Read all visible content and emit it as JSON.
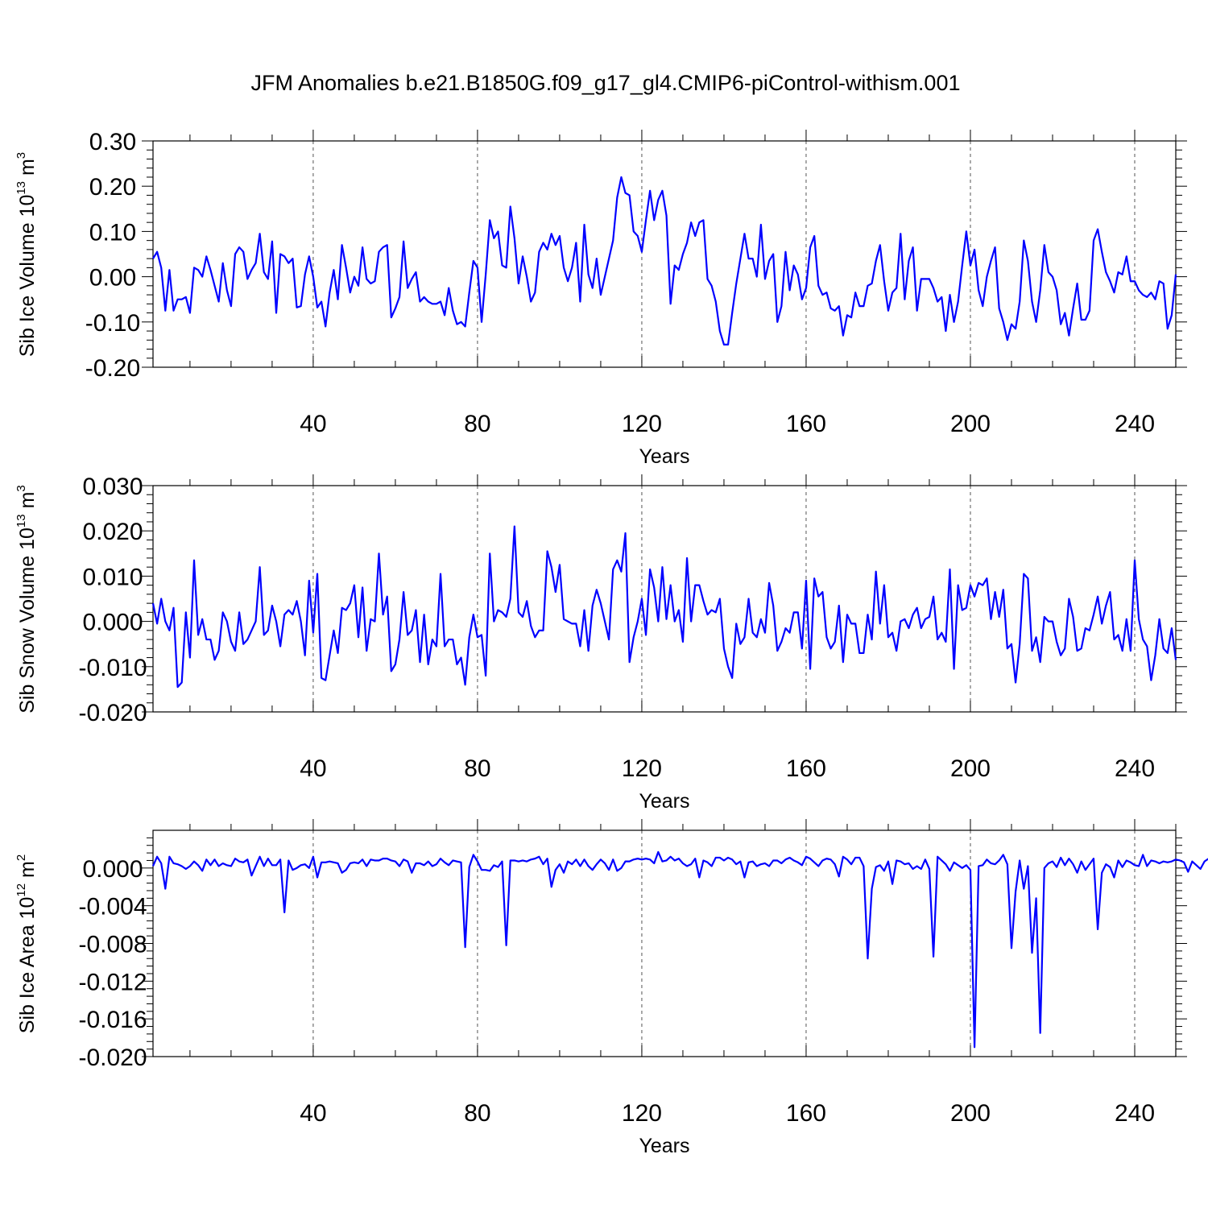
{
  "figure": {
    "title": "JFM Anomalies b.e21.B1850G.f09_g17_gl4.CMIP6-piControl-withism.001",
    "line_color": "#0000ff"
  },
  "chart_data": [
    {
      "type": "line",
      "ylabel_main": "Sib Ice Volume 10",
      "ylabel_exp": "13",
      "ylabel_unit": " m",
      "ylabel_unit_exp": "3",
      "xlabel": "Years",
      "xlim": [
        1,
        250
      ],
      "ylim": [
        -0.2,
        0.3
      ],
      "x_ticks": [
        40,
        80,
        120,
        160,
        200,
        240
      ],
      "x_tick_labels": [
        "40",
        "80",
        "120",
        "160",
        "200",
        "240"
      ],
      "y_ticks": [
        -0.2,
        -0.1,
        0.0,
        0.1,
        0.2,
        0.3
      ],
      "y_tick_labels": [
        "-0.20",
        "-0.10",
        "0.00",
        "0.10",
        "0.20",
        "0.30"
      ],
      "grid": "vertical dashed at x ticks",
      "x_start": 1,
      "values": [
        0.04,
        0.055,
        0.02,
        -0.075,
        0.015,
        -0.075,
        -0.05,
        -0.05,
        -0.045,
        -0.08,
        0.02,
        0.015,
        0.0,
        0.045,
        0.015,
        -0.02,
        -0.055,
        0.03,
        -0.03,
        -0.065,
        0.05,
        0.065,
        0.055,
        -0.005,
        0.015,
        0.03,
        0.095,
        0.01,
        -0.005,
        0.078,
        -0.08,
        0.05,
        0.045,
        0.03,
        0.04,
        -0.068,
        -0.065,
        0.005,
        0.045,
        0.0,
        -0.068,
        -0.055,
        -0.11,
        -0.035,
        0.015,
        -0.05,
        0.07,
        0.02,
        -0.035,
        0.0,
        -0.02,
        0.065,
        -0.005,
        -0.015,
        -0.01,
        0.055,
        0.065,
        0.07,
        -0.09,
        -0.07,
        -0.045,
        0.078,
        -0.025,
        -0.005,
        0.01,
        -0.055,
        -0.045,
        -0.055,
        -0.06,
        -0.06,
        -0.055,
        -0.085,
        -0.025,
        -0.075,
        -0.105,
        -0.1,
        -0.11,
        -0.035,
        0.035,
        0.02,
        -0.1,
        0.005,
        0.125,
        0.085,
        0.1,
        0.025,
        0.02,
        0.155,
        0.085,
        -0.015,
        0.045,
        0.0,
        -0.055,
        -0.035,
        0.055,
        0.075,
        0.06,
        0.095,
        0.07,
        0.09,
        0.02,
        -0.01,
        0.02,
        0.075,
        -0.055,
        0.115,
        0.005,
        -0.025,
        0.04,
        -0.04,
        0.0,
        0.04,
        0.08,
        0.175,
        0.22,
        0.185,
        0.18,
        0.1,
        0.09,
        0.055,
        0.125,
        0.19,
        0.125,
        0.17,
        0.19,
        0.135,
        -0.06,
        0.025,
        0.015,
        0.05,
        0.075,
        0.12,
        0.09,
        0.12,
        0.125,
        -0.005,
        -0.02,
        -0.055,
        -0.12,
        -0.15,
        -0.15,
        -0.08,
        -0.015,
        0.04,
        0.095,
        0.04,
        0.04,
        0.0,
        0.115,
        -0.005,
        0.035,
        0.05,
        -0.1,
        -0.065,
        0.055,
        -0.03,
        0.025,
        0.005,
        -0.05,
        -0.025,
        0.065,
        0.09,
        -0.02,
        -0.04,
        -0.035,
        -0.07,
        -0.075,
        -0.065,
        -0.13,
        -0.085,
        -0.09,
        -0.035,
        -0.065,
        -0.065,
        -0.02,
        -0.015,
        0.035,
        0.07,
        -0.01,
        -0.075,
        -0.035,
        -0.025,
        0.095,
        -0.05,
        0.035,
        0.065,
        -0.075,
        -0.005,
        -0.005,
        -0.005,
        -0.025,
        -0.055,
        -0.045,
        -0.12,
        -0.04,
        -0.1,
        -0.055,
        0.025,
        0.1,
        0.025,
        0.06,
        -0.03,
        -0.065,
        0.0,
        0.035,
        0.065,
        -0.07,
        -0.1,
        -0.14,
        -0.105,
        -0.115,
        -0.055,
        0.08,
        0.035,
        -0.055,
        -0.1,
        -0.03,
        0.07,
        0.01,
        0.0,
        -0.03,
        -0.105,
        -0.08,
        -0.13,
        -0.07,
        -0.015,
        -0.095,
        -0.095,
        -0.075,
        0.08,
        0.105,
        0.055,
        0.01,
        -0.01,
        -0.035,
        0.01,
        0.005,
        0.045,
        -0.01,
        -0.01,
        -0.03,
        -0.04,
        -0.045,
        -0.035,
        -0.05,
        -0.01,
        -0.015,
        -0.115,
        -0.085,
        0.005
      ]
    },
    {
      "type": "line",
      "ylabel_main": "Sib Snow Volume 10",
      "ylabel_exp": "13",
      "ylabel_unit": " m",
      "ylabel_unit_exp": "3",
      "xlabel": "Years",
      "xlim": [
        1,
        250
      ],
      "ylim": [
        -0.02,
        0.03
      ],
      "x_ticks": [
        40,
        80,
        120,
        160,
        200,
        240
      ],
      "x_tick_labels": [
        "40",
        "80",
        "120",
        "160",
        "200",
        "240"
      ],
      "y_ticks": [
        -0.02,
        -0.01,
        0.0,
        0.01,
        0.02,
        0.03
      ],
      "y_tick_labels": [
        "-0.020",
        "-0.010",
        "0.000",
        "0.010",
        "0.020",
        "0.030"
      ],
      "grid": "vertical dashed at x ticks",
      "x_start": 1,
      "values": [
        0.004,
        -0.0005,
        0.005,
        0.0,
        -0.002,
        0.003,
        -0.0145,
        -0.0135,
        0.002,
        -0.008,
        0.0135,
        -0.003,
        0.0005,
        -0.004,
        -0.004,
        -0.0085,
        -0.0065,
        0.002,
        0.0,
        -0.0045,
        -0.0065,
        0.002,
        -0.005,
        -0.004,
        -0.002,
        0.0,
        0.012,
        -0.003,
        -0.002,
        0.0035,
        0.0,
        -0.0055,
        0.0015,
        0.0025,
        0.0015,
        0.0045,
        0.0,
        -0.0075,
        0.009,
        -0.0025,
        0.0105,
        -0.0125,
        -0.013,
        -0.0075,
        -0.002,
        -0.007,
        0.003,
        0.0025,
        0.004,
        0.008,
        -0.0035,
        0.0075,
        -0.0065,
        0.0005,
        0.0,
        0.015,
        0.0015,
        0.0055,
        -0.011,
        -0.0095,
        -0.004,
        0.0065,
        -0.003,
        -0.002,
        0.0025,
        -0.009,
        0.0015,
        -0.0095,
        -0.004,
        -0.0055,
        0.0105,
        -0.0055,
        -0.004,
        -0.004,
        -0.0095,
        -0.008,
        -0.014,
        -0.0035,
        0.0015,
        -0.0035,
        -0.003,
        -0.012,
        0.015,
        0.0,
        0.0025,
        0.002,
        0.001,
        0.005,
        0.021,
        0.002,
        0.001,
        0.0045,
        -0.001,
        -0.0035,
        -0.002,
        -0.002,
        0.0155,
        0.012,
        0.0065,
        0.0125,
        0.0005,
        0.0,
        -0.0005,
        -0.0005,
        -0.0055,
        0.0025,
        -0.0065,
        0.0035,
        0.007,
        0.004,
        0.0,
        -0.004,
        0.0115,
        0.0135,
        0.011,
        0.0195,
        -0.009,
        -0.0035,
        0.0,
        0.005,
        -0.003,
        0.0115,
        0.0075,
        0.0,
        0.012,
        0.0005,
        0.008,
        0.0,
        0.0025,
        -0.0045,
        0.014,
        0.0,
        0.008,
        0.008,
        0.0045,
        0.0015,
        0.0025,
        0.002,
        0.005,
        -0.006,
        -0.01,
        -0.0125,
        -0.0005,
        -0.005,
        -0.0035,
        0.005,
        -0.0025,
        -0.0035,
        0.0005,
        -0.0025,
        0.0085,
        0.0035,
        -0.0065,
        -0.0045,
        -0.0015,
        -0.0025,
        0.002,
        0.002,
        -0.006,
        0.009,
        -0.0105,
        0.0095,
        0.0055,
        0.0065,
        -0.0035,
        -0.006,
        -0.0045,
        0.0035,
        -0.009,
        0.0015,
        -0.0005,
        -0.0005,
        -0.007,
        -0.007,
        0.0015,
        -0.004,
        0.011,
        -0.0005,
        0.008,
        -0.0035,
        -0.0025,
        -0.0065,
        0.0,
        0.0005,
        -0.0015,
        0.0015,
        0.003,
        -0.0015,
        0.0005,
        0.001,
        0.0055,
        -0.004,
        -0.0025,
        -0.0045,
        0.0115,
        -0.0105,
        0.008,
        0.0025,
        0.003,
        0.008,
        0.0055,
        0.0085,
        0.008,
        0.0095,
        0.0005,
        0.0065,
        0.001,
        0.007,
        -0.006,
        -0.005,
        -0.0135,
        -0.005,
        0.0105,
        0.0095,
        -0.0065,
        -0.0035,
        -0.009,
        0.001,
        0.0,
        0.0,
        -0.0045,
        -0.0075,
        -0.006,
        0.005,
        0.001,
        -0.0065,
        -0.006,
        -0.0015,
        -0.002,
        0.0015,
        0.0055,
        -0.0005,
        0.0035,
        0.0065,
        -0.004,
        -0.003,
        -0.0065,
        0.0005,
        -0.0065,
        0.0135,
        0.0005,
        -0.004,
        -0.0055,
        -0.013,
        -0.0075,
        0.0005,
        -0.006,
        -0.007,
        -0.0015,
        -0.0085
      ]
    },
    {
      "type": "line",
      "ylabel_main": "Sib Ice Area 10",
      "ylabel_exp": "12",
      "ylabel_unit": " m",
      "ylabel_unit_exp": "2",
      "xlabel": "Years",
      "xlim": [
        1,
        250
      ],
      "ylim": [
        -0.02,
        0.004
      ],
      "x_ticks": [
        40,
        80,
        120,
        160,
        200,
        240
      ],
      "x_tick_labels": [
        "40",
        "80",
        "120",
        "160",
        "200",
        "240"
      ],
      "y_ticks": [
        -0.02,
        -0.016,
        -0.012,
        -0.008,
        -0.004,
        0.0
      ],
      "y_tick_labels": [
        "-0.020",
        "-0.016",
        "-0.012",
        "-0.008",
        "-0.004",
        "0.000"
      ],
      "grid": "vertical dashed at x ticks",
      "x_start": 1,
      "values": [
        0.0002,
        0.0012,
        0.0005,
        -0.0022,
        0.0012,
        0.0005,
        0.0004,
        0.0002,
        -0.0001,
        0.0002,
        0.0007,
        0.0003,
        -0.0003,
        0.0009,
        0.0003,
        0.0009,
        0.0002,
        0.0005,
        0.0003,
        0.0002,
        0.001,
        0.0007,
        0.0006,
        0.0009,
        -0.0008,
        0.0002,
        0.0012,
        0.0002,
        0.001,
        0.0003,
        0.0003,
        0.0009,
        -0.0047,
        0.0008,
        -0.0002,
        0.0,
        0.0003,
        0.0004,
        0.0,
        0.0012,
        -0.001,
        0.0006,
        0.0006,
        0.0007,
        0.0006,
        0.0005,
        -0.0005,
        -0.0002,
        0.0005,
        0.0006,
        0.0005,
        0.0009,
        0.0002,
        0.0009,
        0.0008,
        0.0008,
        0.001,
        0.001,
        0.0008,
        0.0007,
        0.0002,
        0.0009,
        0.0007,
        -0.0005,
        0.0005,
        0.0005,
        0.0003,
        0.0007,
        0.0002,
        0.0004,
        0.001,
        0.0006,
        0.0003,
        0.0008,
        0.0007,
        0.0006,
        -0.0084,
        0.0001,
        0.0014,
        0.0007,
        -0.0002,
        -0.0002,
        -0.0003,
        0.0003,
        0.0001,
        0.0007,
        -0.0082,
        0.0008,
        0.0008,
        0.0007,
        0.0008,
        0.0007,
        0.0009,
        0.001,
        0.0012,
        0.0004,
        0.001,
        -0.002,
        -0.0002,
        0.0004,
        -0.0005,
        0.0007,
        0.0004,
        0.0009,
        0.0002,
        0.0009,
        0.0002,
        -0.0002,
        0.0004,
        0.0009,
        0.0005,
        -0.0002,
        0.0009,
        -0.0003,
        0.0,
        0.0007,
        0.0007,
        0.0009,
        0.001,
        0.0009,
        0.001,
        0.0009,
        0.0005,
        0.0017,
        0.0007,
        0.0008,
        0.0012,
        0.0008,
        0.001,
        0.0005,
        0.0002,
        0.0004,
        0.001,
        -0.001,
        0.0008,
        0.0006,
        0.0002,
        0.0011,
        0.0011,
        0.0008,
        0.0011,
        0.0009,
        0.0004,
        0.0007,
        -0.001,
        0.0006,
        0.0007,
        0.0002,
        0.0004,
        0.0005,
        0.0002,
        0.0008,
        0.0008,
        0.0005,
        0.0009,
        0.0011,
        0.0008,
        0.0006,
        0.0003,
        0.0012,
        0.001,
        0.0006,
        0.0002,
        0.0008,
        0.001,
        0.0009,
        0.0004,
        -0.0009,
        0.0012,
        0.0009,
        0.0004,
        0.0011,
        0.0011,
        0.0002,
        -0.0096,
        -0.0022,
        0.0001,
        0.0003,
        -0.0003,
        0.0007,
        -0.0017,
        0.0008,
        0.0007,
        0.0004,
        0.0005,
        -0.0001,
        0.0002,
        -0.0001,
        0.0009,
        -0.0001,
        -0.0094,
        0.0012,
        0.0008,
        0.0004,
        -0.0003,
        0.0006,
        0.0003,
        0.0,
        0.0003,
        -0.0002,
        -0.019,
        0.0002,
        0.0003,
        0.0009,
        0.0005,
        0.0004,
        0.0008,
        0.0014,
        0.0004,
        -0.0085,
        -0.0025,
        0.0008,
        -0.0022,
        0.0002,
        -0.009,
        -0.0032,
        -0.0175,
        0.0,
        0.0005,
        0.0007,
        0.0001,
        0.0011,
        0.0003,
        0.001,
        0.0004,
        -0.0005,
        0.0007,
        -0.0002,
        0.0004,
        0.001,
        -0.0065,
        -0.0005,
        0.0004,
        0.0001,
        -0.001,
        0.0008,
        0.0001,
        0.0008,
        0.0006,
        0.0003,
        0.0002,
        0.0014,
        0.0002,
        0.0008,
        0.0007,
        0.0005,
        0.0007,
        0.0006,
        0.0007,
        0.0009,
        0.0008,
        0.0006,
        -0.0004,
        0.0007,
        0.0003,
        -0.0001,
        0.0007,
        0.001
      ]
    }
  ]
}
